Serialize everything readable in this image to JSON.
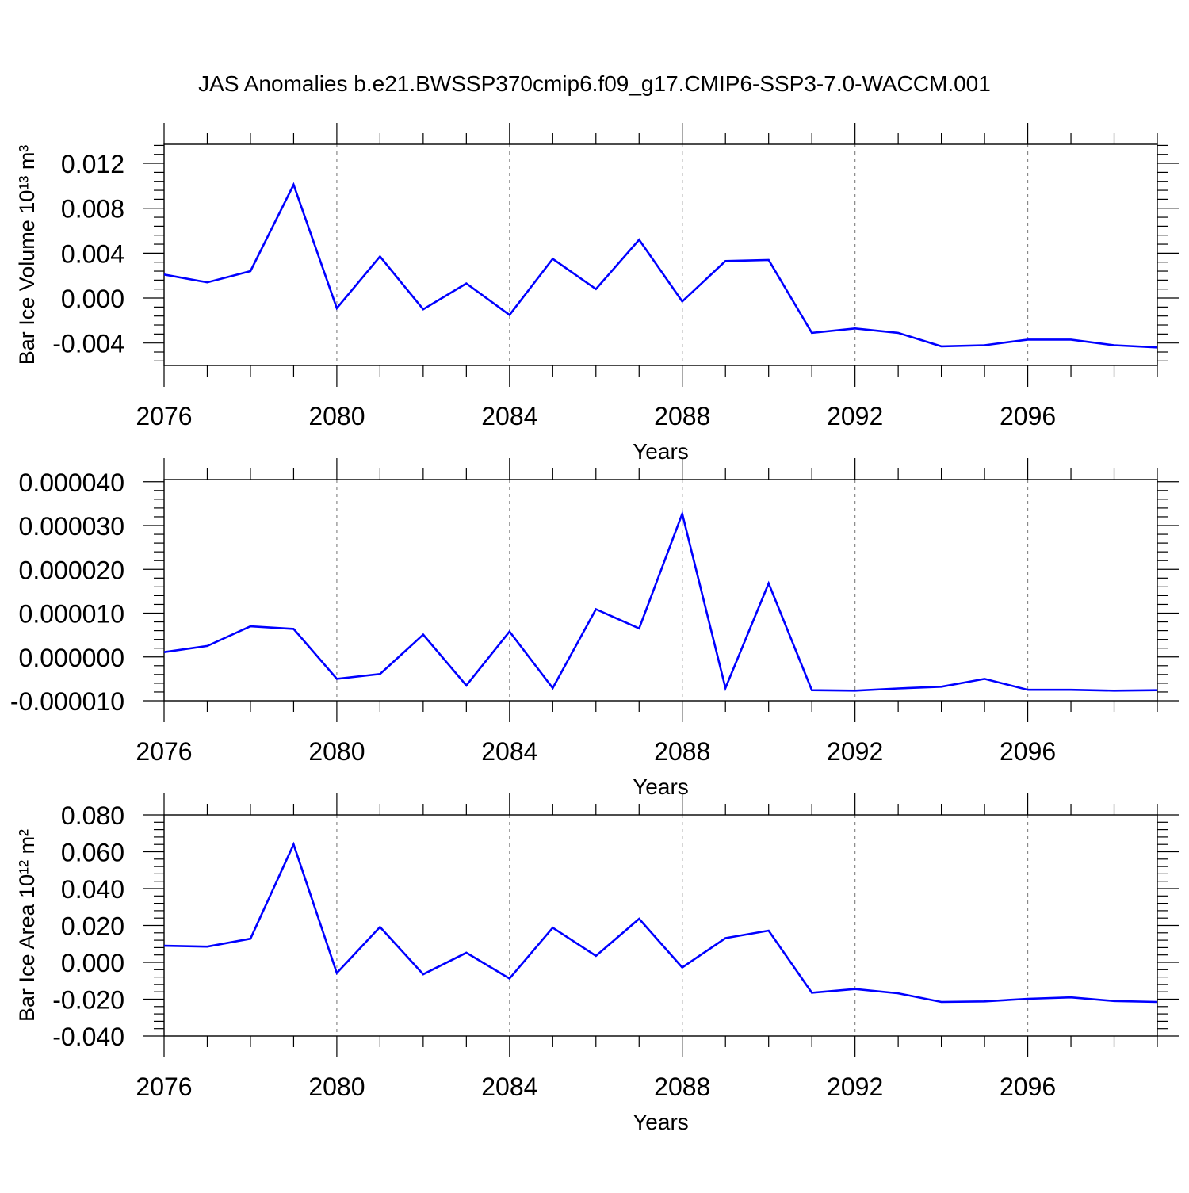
{
  "figure_title": "JAS Anomalies b.e21.BWSSP370cmip6.f09_g17.CMIP6-SSP3-7.0-WACCM.001",
  "line_color": "#0000ff",
  "chart_data": [
    {
      "type": "line",
      "title": "",
      "xlabel": "Years",
      "ylabel": "Bar Ice Volume",
      "ylabel_unit": "10¹³ m³",
      "xlim": [
        2076,
        2099
      ],
      "ylim": [
        -0.006,
        0.0137
      ],
      "xticks": [
        2076,
        2080,
        2084,
        2088,
        2092,
        2096
      ],
      "yticks": [
        -0.004,
        0.0,
        0.004,
        0.008,
        0.012
      ],
      "ytick_labels": [
        "-0.004",
        "0.000",
        "0.004",
        "0.008",
        "0.012"
      ],
      "x": [
        2076,
        2077,
        2078,
        2079,
        2080,
        2081,
        2082,
        2083,
        2084,
        2085,
        2086,
        2087,
        2088,
        2089,
        2090,
        2091,
        2092,
        2093,
        2094,
        2095,
        2096,
        2097,
        2098,
        2099
      ],
      "values": [
        0.0021,
        0.0014,
        0.0024,
        0.0101,
        -0.0009,
        0.0037,
        -0.001,
        0.0013,
        -0.0015,
        0.0035,
        0.0008,
        0.0052,
        -0.0003,
        0.0033,
        0.0034,
        -0.0031,
        -0.0027,
        -0.0031,
        -0.0043,
        -0.0042,
        -0.0037,
        -0.0037,
        -0.0042,
        -0.0044
      ]
    },
    {
      "type": "line",
      "title": "",
      "xlabel": "Years",
      "ylabel": "",
      "ylabel_unit": "",
      "xlim": [
        2076,
        2099
      ],
      "ylim": [
        -1e-05,
        4.05e-05
      ],
      "xticks": [
        2076,
        2080,
        2084,
        2088,
        2092,
        2096
      ],
      "yticks": [
        -1e-05,
        0.0,
        1e-05,
        2e-05,
        3e-05,
        4e-05
      ],
      "ytick_labels": [
        "-0.000010",
        "0.000000",
        "0.000010",
        "0.000020",
        "0.000030",
        "0.000040"
      ],
      "x": [
        2076,
        2077,
        2078,
        2079,
        2080,
        2081,
        2082,
        2083,
        2084,
        2085,
        2086,
        2087,
        2088,
        2089,
        2090,
        2091,
        2092,
        2093,
        2094,
        2095,
        2096,
        2097,
        2098,
        2099
      ],
      "values": [
        1.1e-06,
        2.5e-06,
        7e-06,
        6.4e-06,
        -5e-06,
        -3.9e-06,
        5.1e-06,
        -6.5e-06,
        5.8e-06,
        -7.1e-06,
        1.09e-05,
        6.5e-06,
        3.27e-05,
        -7.1e-06,
        1.68e-05,
        -7.6e-06,
        -7.7e-06,
        -7.2e-06,
        -6.8e-06,
        -5e-06,
        -7.5e-06,
        -7.5e-06,
        -7.7e-06,
        -7.6e-06
      ]
    },
    {
      "type": "line",
      "title": "",
      "xlabel": "Years",
      "ylabel": "Bar Ice Area",
      "ylabel_unit": "10¹² m²",
      "xlim": [
        2076,
        2099
      ],
      "ylim": [
        -0.04,
        0.08
      ],
      "xticks": [
        2076,
        2080,
        2084,
        2088,
        2092,
        2096
      ],
      "yticks": [
        -0.04,
        -0.02,
        0.0,
        0.02,
        0.04,
        0.06,
        0.08
      ],
      "ytick_labels": [
        "-0.040",
        "-0.020",
        "0.000",
        "0.020",
        "0.040",
        "0.060",
        "0.080"
      ],
      "x": [
        2076,
        2077,
        2078,
        2079,
        2080,
        2081,
        2082,
        2083,
        2084,
        2085,
        2086,
        2087,
        2088,
        2089,
        2090,
        2091,
        2092,
        2093,
        2094,
        2095,
        2096,
        2097,
        2098,
        2099
      ],
      "values": [
        0.009,
        0.0085,
        0.0128,
        0.064,
        -0.0058,
        0.0192,
        -0.0065,
        0.0052,
        -0.0088,
        0.0188,
        0.0035,
        0.0236,
        -0.0028,
        0.0131,
        0.0172,
        -0.0165,
        -0.0145,
        -0.0168,
        -0.0215,
        -0.0212,
        -0.0198,
        -0.019,
        -0.021,
        -0.0215
      ]
    }
  ]
}
